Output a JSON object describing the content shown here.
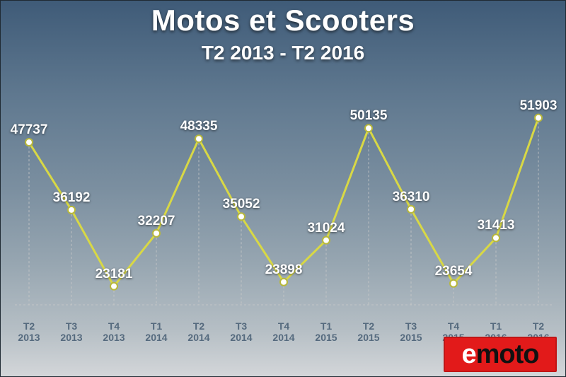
{
  "title": "Motos et Scooters",
  "subtitle": "T2 2013 - T2 2016",
  "chart": {
    "type": "line",
    "ylim": [
      20000,
      55000
    ],
    "line_color": "#d8d845",
    "line_width": 3,
    "marker_fill": "#ffffff",
    "marker_stroke": "#b8b83a",
    "marker_radius": 5,
    "grid_color": "#c9c9c9",
    "grid_dash": "3 3",
    "label_color": "#ffffff",
    "label_fontsize": 19,
    "xlabel_color": "#556a7e",
    "xlabel_fontsize": 14,
    "background_gradient": [
      "#3f5b78",
      "#d3d6d9"
    ],
    "categories": [
      {
        "q": "T2",
        "y": "2013"
      },
      {
        "q": "T3",
        "y": "2013"
      },
      {
        "q": "T4",
        "y": "2013"
      },
      {
        "q": "T1",
        "y": "2014"
      },
      {
        "q": "T2",
        "y": "2014"
      },
      {
        "q": "T3",
        "y": "2014"
      },
      {
        "q": "T4",
        "y": "2014"
      },
      {
        "q": "T1",
        "y": "2015"
      },
      {
        "q": "T2",
        "y": "2015"
      },
      {
        "q": "T3",
        "y": "2015"
      },
      {
        "q": "T4",
        "y": "2015"
      },
      {
        "q": "T1",
        "y": "2016"
      },
      {
        "q": "T2",
        "y": "2016"
      }
    ],
    "values": [
      47737,
      36192,
      23181,
      32207,
      48335,
      35052,
      23898,
      31024,
      50135,
      36310,
      23654,
      31413,
      51903
    ]
  },
  "logo": {
    "prefix": "e",
    "suffix": "moto",
    "bg_color": "#e21a1a",
    "prefix_color": "#ffffff",
    "suffix_color": "#111111"
  }
}
